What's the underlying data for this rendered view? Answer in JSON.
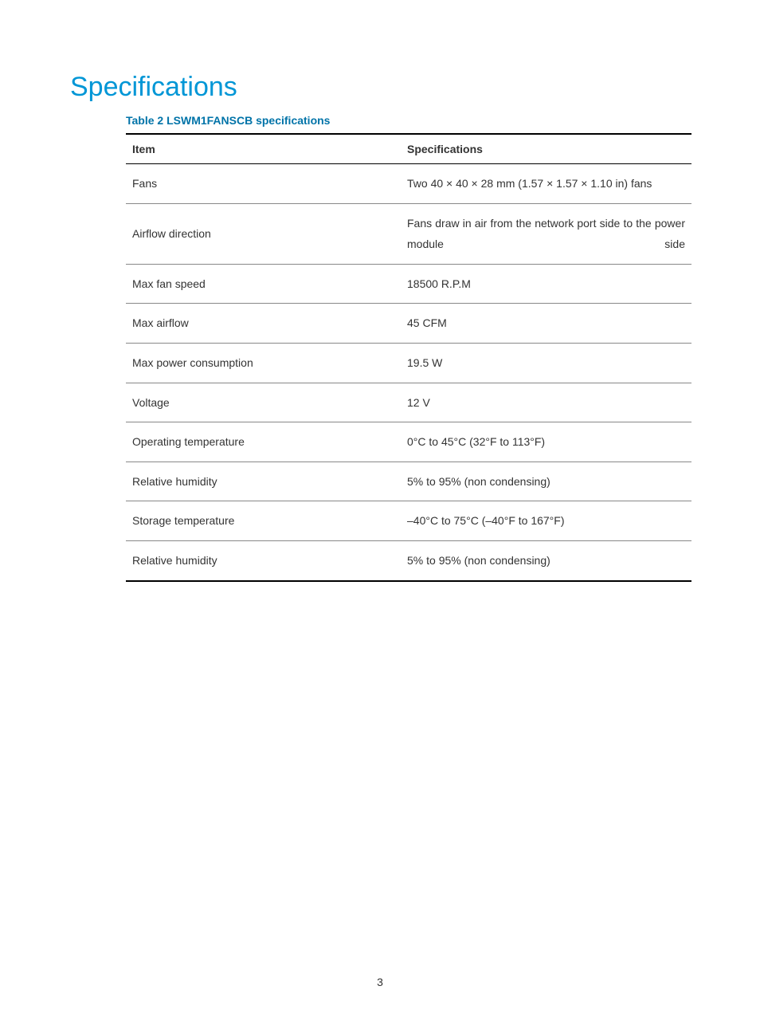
{
  "title": "Specifications",
  "title_color": "#0096d6",
  "table_caption": "Table 2 LSWM1FANSCB specifications",
  "caption_color": "#0073a8",
  "columns": [
    "Item",
    "Specifications"
  ],
  "rows": [
    {
      "item": "Fans",
      "spec": "Two 40 × 40 × 28 mm (1.57 × 1.57 × 1.10 in) fans",
      "justify": false
    },
    {
      "item": "Airflow direction",
      "spec": "Fans draw in air from the network port side to the power module side",
      "justify": true
    },
    {
      "item": "Max fan speed",
      "spec": "18500 R.P.M",
      "justify": false
    },
    {
      "item": "Max airflow",
      "spec": "45 CFM",
      "justify": false
    },
    {
      "item": "Max power consumption",
      "spec": "19.5 W",
      "justify": false
    },
    {
      "item": "Voltage",
      "spec": "12 V",
      "justify": false
    },
    {
      "item": "Operating temperature",
      "spec": "0°C to 45°C (32°F to 113°F)",
      "justify": false
    },
    {
      "item": "Relative humidity",
      "spec": "5% to 95% (non condensing)",
      "justify": false
    },
    {
      "item": "Storage temperature",
      "spec": "–40°C to 75°C (–40°F to 167°F)",
      "justify": false
    },
    {
      "item": "Relative humidity",
      "spec": "5% to 95% (non condensing)",
      "justify": false
    }
  ],
  "page_number": "3"
}
